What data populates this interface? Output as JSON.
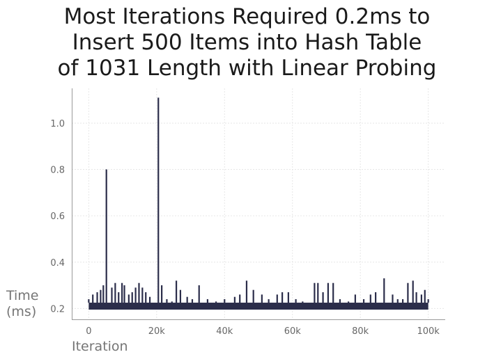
{
  "chart_data": {
    "type": "line",
    "title_lines": [
      "Most Iterations Required 0.2ms to",
      "Insert 500 Items into Hash Table",
      "of 1031 Length with Linear Probing"
    ],
    "xlabel": "Iteration",
    "ylabel_lines": [
      "Time",
      "(ms)"
    ],
    "xlim": [
      -5000,
      105000
    ],
    "ylim": [
      0.15,
      1.15
    ],
    "x_ticks": [
      0,
      20000,
      40000,
      60000,
      80000,
      100000
    ],
    "x_tick_labels": [
      "0",
      "20k",
      "40k",
      "60k",
      "80k",
      "100k"
    ],
    "y_ticks": [
      0.2,
      0.4,
      0.6,
      0.8,
      1.0
    ],
    "y_tick_labels": [
      "0.2",
      "0.4",
      "0.6",
      "0.8",
      "1.0"
    ],
    "grid": true,
    "line_color": "#2b2d4a",
    "series": [
      {
        "baseline_band": [
          0.195,
          0.225
        ],
        "spikes": [
          [
            0,
            0.24
          ],
          [
            1200,
            0.26
          ],
          [
            2500,
            0.27
          ],
          [
            3500,
            0.28
          ],
          [
            4300,
            0.3
          ],
          [
            5200,
            0.8
          ],
          [
            6800,
            0.29
          ],
          [
            7800,
            0.31
          ],
          [
            8800,
            0.27
          ],
          [
            9800,
            0.31
          ],
          [
            10500,
            0.3
          ],
          [
            11800,
            0.26
          ],
          [
            12800,
            0.27
          ],
          [
            13800,
            0.29
          ],
          [
            14800,
            0.31
          ],
          [
            15800,
            0.29
          ],
          [
            16800,
            0.27
          ],
          [
            18000,
            0.25
          ],
          [
            20500,
            1.11
          ],
          [
            21500,
            0.3
          ],
          [
            23000,
            0.24
          ],
          [
            24500,
            0.23
          ],
          [
            25800,
            0.32
          ],
          [
            27000,
            0.28
          ],
          [
            29000,
            0.25
          ],
          [
            30500,
            0.24
          ],
          [
            32500,
            0.3
          ],
          [
            35000,
            0.24
          ],
          [
            37500,
            0.23
          ],
          [
            40000,
            0.24
          ],
          [
            43000,
            0.25
          ],
          [
            44500,
            0.26
          ],
          [
            46500,
            0.32
          ],
          [
            48500,
            0.28
          ],
          [
            51000,
            0.26
          ],
          [
            53000,
            0.24
          ],
          [
            55500,
            0.26
          ],
          [
            57000,
            0.27
          ],
          [
            58800,
            0.27
          ],
          [
            61000,
            0.24
          ],
          [
            63000,
            0.23
          ],
          [
            66500,
            0.31
          ],
          [
            67500,
            0.31
          ],
          [
            69000,
            0.27
          ],
          [
            70500,
            0.31
          ],
          [
            72000,
            0.31
          ],
          [
            74000,
            0.24
          ],
          [
            76500,
            0.23
          ],
          [
            78500,
            0.26
          ],
          [
            81000,
            0.24
          ],
          [
            83000,
            0.26
          ],
          [
            84500,
            0.27
          ],
          [
            87000,
            0.33
          ],
          [
            89500,
            0.26
          ],
          [
            91000,
            0.24
          ],
          [
            92500,
            0.24
          ],
          [
            94000,
            0.31
          ],
          [
            95500,
            0.32
          ],
          [
            96500,
            0.27
          ],
          [
            98000,
            0.26
          ],
          [
            99000,
            0.28
          ],
          [
            100000,
            0.24
          ]
        ]
      }
    ]
  }
}
